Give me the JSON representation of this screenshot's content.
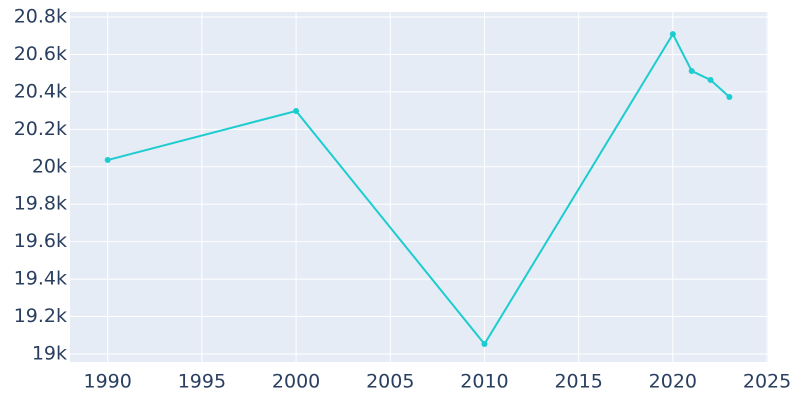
{
  "chart_data": {
    "type": "line",
    "x": [
      1990,
      2000,
      2010,
      2020,
      2021,
      2022,
      2023
    ],
    "series": [
      {
        "color": "#1ccccf",
        "values": [
          20036,
          20298,
          19053,
          20709,
          20512,
          20464,
          20373
        ]
      }
    ],
    "xlim": [
      1988,
      2025.05
    ],
    "xticks": [
      1990,
      1995,
      2000,
      2005,
      2010,
      2015,
      2020,
      2025
    ],
    "ylim": [
      18957,
      20827
    ],
    "yticks": [
      {
        "value": 19000,
        "label": "19k"
      },
      {
        "value": 19200,
        "label": "19.2k"
      },
      {
        "value": 19400,
        "label": "19.4k"
      },
      {
        "value": 19600,
        "label": "19.6k"
      },
      {
        "value": 19800,
        "label": "19.8k"
      },
      {
        "value": 20000,
        "label": "20k"
      },
      {
        "value": 20200,
        "label": "20.2k"
      },
      {
        "value": 20400,
        "label": "20.4k"
      },
      {
        "value": 20600,
        "label": "20.6k"
      },
      {
        "value": 20800,
        "label": "20.8k"
      }
    ],
    "grid": true,
    "markers": true
  }
}
